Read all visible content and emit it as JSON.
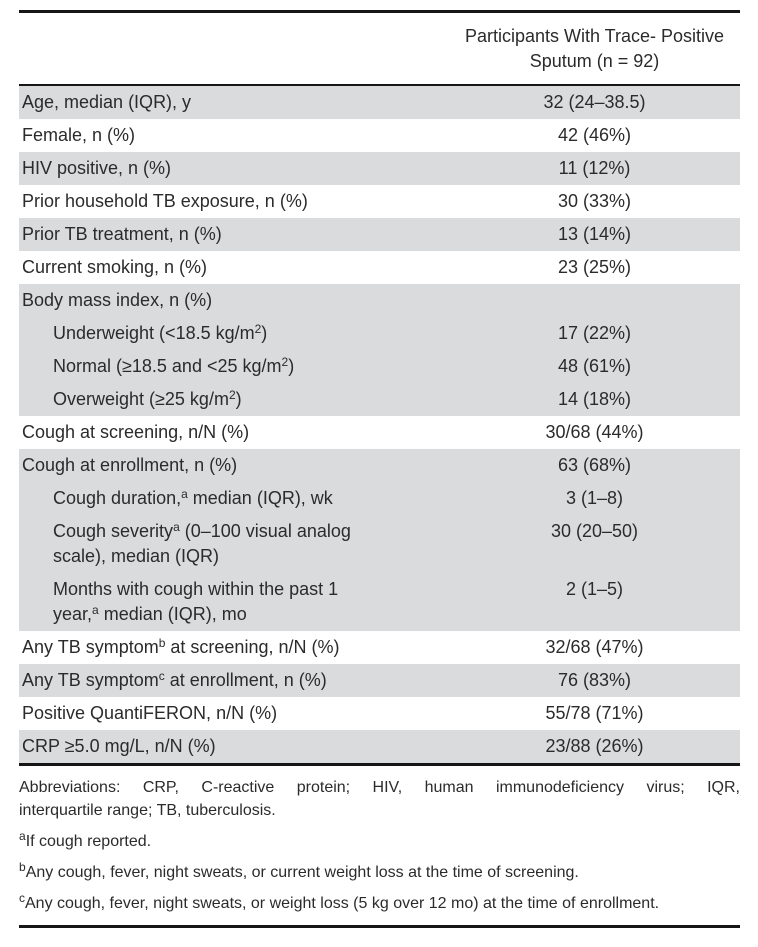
{
  "table": {
    "shade_color": "#dadbdc",
    "header": {
      "line1": "Participants With Trace- Positive",
      "line2": "Sputum (n = 92)"
    },
    "rows": [
      {
        "name": "age",
        "shaded": true,
        "indent": 0,
        "label_parts": [
          {
            "t": "Age, median (IQR), y"
          }
        ],
        "value": "32 (24–38.5)"
      },
      {
        "name": "female",
        "shaded": false,
        "indent": 0,
        "label_parts": [
          {
            "t": "Female, n (%)"
          }
        ],
        "value": "42 (46%)"
      },
      {
        "name": "hiv-positive",
        "shaded": true,
        "indent": 0,
        "label_parts": [
          {
            "t": "HIV positive, n (%)"
          }
        ],
        "value": "11 (12%)"
      },
      {
        "name": "prior-household-tb-exposure",
        "shaded": false,
        "indent": 0,
        "label_parts": [
          {
            "t": "Prior household TB exposure, n (%)"
          }
        ],
        "value": "30 (33%)"
      },
      {
        "name": "prior-tb-treatment",
        "shaded": true,
        "indent": 0,
        "label_parts": [
          {
            "t": "Prior TB treatment, n (%)"
          }
        ],
        "value": "13 (14%)"
      },
      {
        "name": "current-smoking",
        "shaded": false,
        "indent": 0,
        "label_parts": [
          {
            "t": "Current smoking, n (%)"
          }
        ],
        "value": "23 (25%)"
      },
      {
        "name": "bmi-header",
        "shaded": true,
        "indent": 0,
        "label_parts": [
          {
            "t": "Body mass index, n (%)"
          }
        ],
        "value": ""
      },
      {
        "name": "bmi-underweight",
        "shaded": true,
        "indent": 1,
        "label_parts": [
          {
            "t": "Underweight (<18.5 kg/m"
          },
          {
            "sup": "2"
          },
          {
            "t": ")"
          }
        ],
        "value": "17 (22%)"
      },
      {
        "name": "bmi-normal",
        "shaded": true,
        "indent": 1,
        "label_parts": [
          {
            "t": "Normal (≥18.5 and <25 kg/m"
          },
          {
            "sup": "2"
          },
          {
            "t": ")"
          }
        ],
        "value": "48 (61%)"
      },
      {
        "name": "bmi-overweight",
        "shaded": true,
        "indent": 1,
        "label_parts": [
          {
            "t": "Overweight (≥25 kg/m"
          },
          {
            "sup": "2"
          },
          {
            "t": ")"
          }
        ],
        "value": "14 (18%)"
      },
      {
        "name": "cough-at-screening",
        "shaded": false,
        "indent": 0,
        "label_parts": [
          {
            "t": "Cough at screening, n/N (%)"
          }
        ],
        "value": "30/68 (44%)"
      },
      {
        "name": "cough-at-enrollment",
        "shaded": true,
        "indent": 0,
        "label_parts": [
          {
            "t": "Cough at enrollment, n (%)"
          }
        ],
        "value": "63 (68%)"
      },
      {
        "name": "cough-duration",
        "shaded": true,
        "indent": 1,
        "label_parts": [
          {
            "t": "Cough duration,"
          },
          {
            "sup": "a"
          },
          {
            "t": " median (IQR), wk"
          }
        ],
        "value": "3 (1–8)"
      },
      {
        "name": "cough-severity",
        "shaded": true,
        "indent": 1,
        "label_parts": [
          {
            "t": "Cough severity"
          },
          {
            "sup": "a"
          },
          {
            "t": " (0–100 visual analog"
          },
          {
            "br": true
          },
          {
            "t": "scale), median (IQR)"
          }
        ],
        "value": "30 (20–50)"
      },
      {
        "name": "months-with-cough",
        "shaded": true,
        "indent": 1,
        "label_parts": [
          {
            "t": "Months with cough within the past 1"
          },
          {
            "br": true
          },
          {
            "t": "year,"
          },
          {
            "sup": "a"
          },
          {
            "t": " median (IQR), mo"
          }
        ],
        "value": "2 (1–5)"
      },
      {
        "name": "any-tb-symptom-screening",
        "shaded": false,
        "indent": 0,
        "label_parts": [
          {
            "t": "Any TB symptom"
          },
          {
            "sup": "b"
          },
          {
            "t": " at screening, n/N (%)"
          }
        ],
        "value": "32/68 (47%)"
      },
      {
        "name": "any-tb-symptom-enrollment",
        "shaded": true,
        "indent": 0,
        "label_parts": [
          {
            "t": "Any TB symptom"
          },
          {
            "sup": "c"
          },
          {
            "t": " at enrollment, n (%)"
          }
        ],
        "value": "76 (83%)"
      },
      {
        "name": "positive-quantiferon",
        "shaded": false,
        "indent": 0,
        "label_parts": [
          {
            "t": "Positive QuantiFERON, n/N (%)"
          }
        ],
        "value": "55/78 (71%)"
      },
      {
        "name": "crp",
        "shaded": true,
        "indent": 0,
        "label_parts": [
          {
            "t": "CRP ≥5.0 mg/L, n/N (%)"
          }
        ],
        "value": "23/88 (26%)"
      }
    ]
  },
  "footnotes": {
    "abbreviations_line1": "Abbreviations: CRP, C-reactive protein; HIV, human immunodeficiency virus; IQR,",
    "abbreviations_line2": "interquartile range; TB, tuberculosis.",
    "notes": [
      {
        "sup": "a",
        "text": "If cough reported."
      },
      {
        "sup": "b",
        "text": "Any cough, fever, night sweats, or current weight loss at the time of screening."
      },
      {
        "sup": "c",
        "text": "Any cough, fever, night sweats, or weight loss (5 kg over 12 mo) at the time of enrollment."
      }
    ]
  }
}
